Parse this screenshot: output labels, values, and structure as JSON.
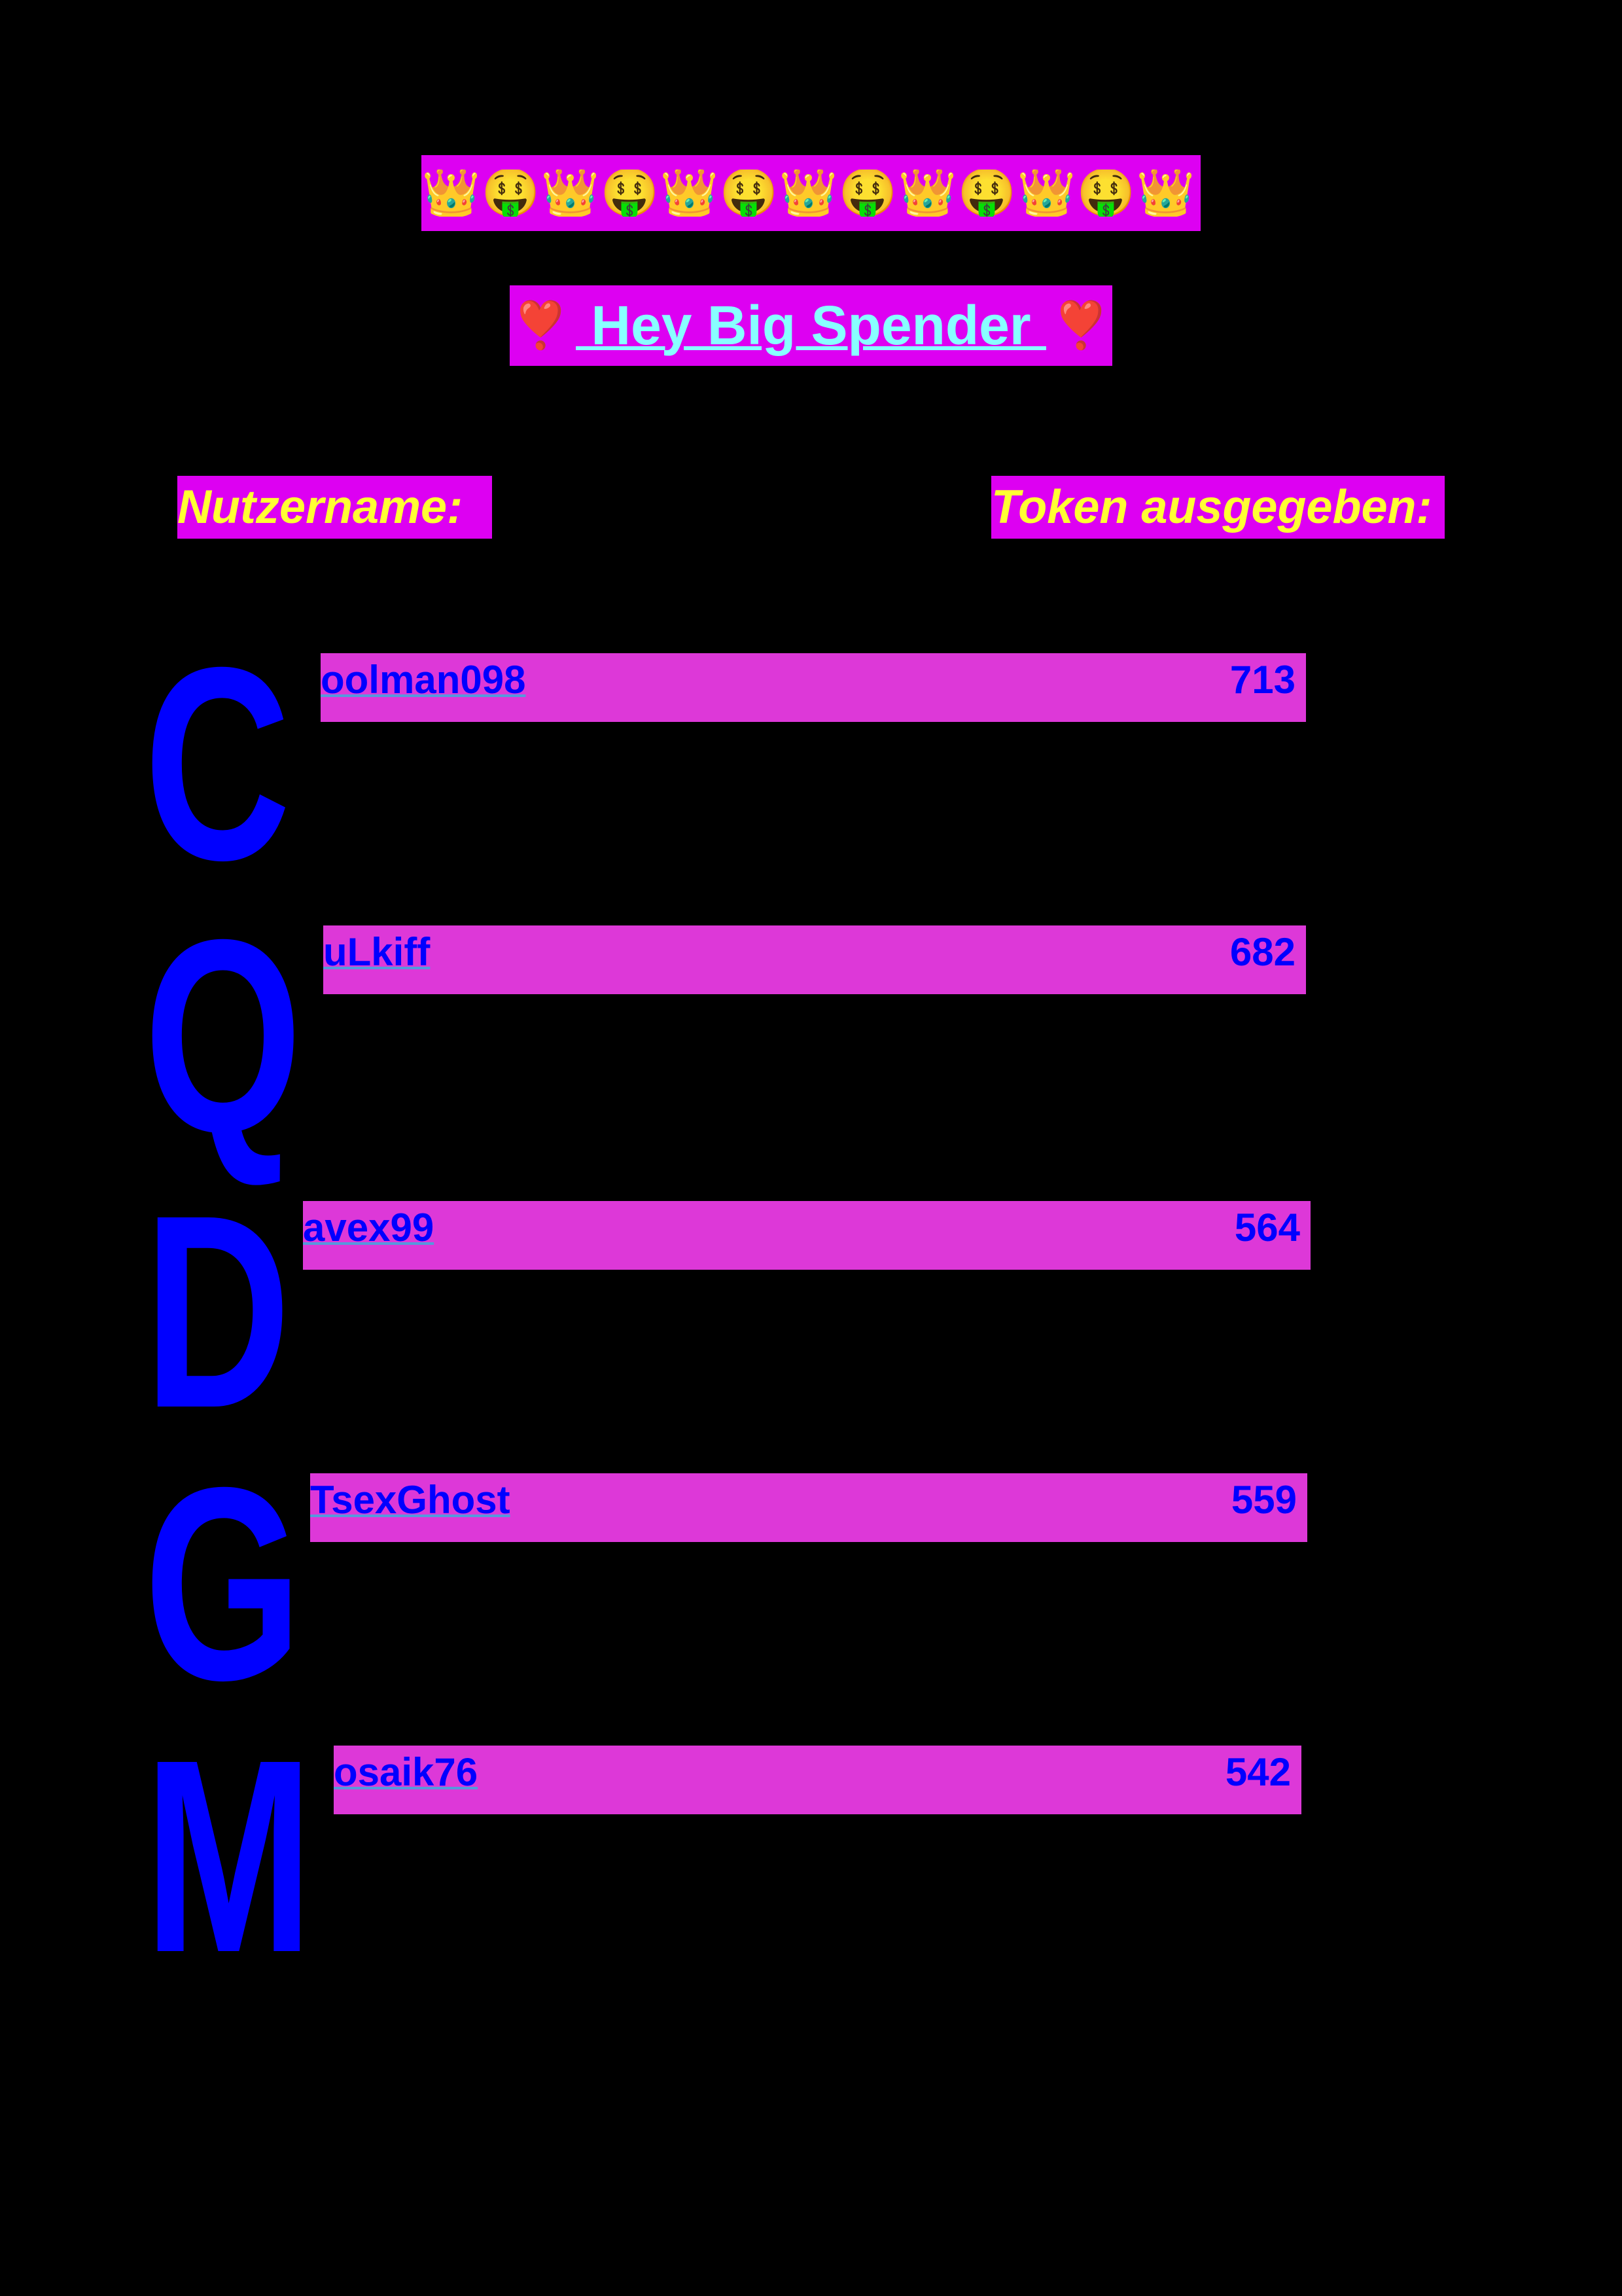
{
  "banner": {
    "emojis": [
      "👑",
      "🤑",
      "👑",
      "🤑",
      "👑",
      "🤑",
      "👑",
      "🤑",
      "👑",
      "🤑",
      "👑",
      "🤑",
      "👑"
    ]
  },
  "title": {
    "heart_left": "❣️",
    "text": " Hey Big Spender ",
    "heart_right": "❣️"
  },
  "headers": {
    "username": "Nutzername:",
    "tokens": "Token ausgegeben:"
  },
  "colors": {
    "background": "#000000",
    "banner": "#dd00f2",
    "row_bar": "#dd38d8",
    "text_blue": "#0000ff",
    "title_cyan": "#88ffff",
    "header_yellow": "#ffff33"
  },
  "leaderboard": [
    {
      "initial": "C",
      "rest": "oolman098",
      "tokens": "713"
    },
    {
      "initial": "Q",
      "rest": "uLkiff",
      "tokens": "682"
    },
    {
      "initial": "D",
      "rest": "avex99",
      "tokens": "564"
    },
    {
      "initial": "G",
      "rest": "TsexGhost",
      "tokens": "559"
    },
    {
      "initial": "M",
      "rest": "osaik76",
      "tokens": "542"
    }
  ]
}
